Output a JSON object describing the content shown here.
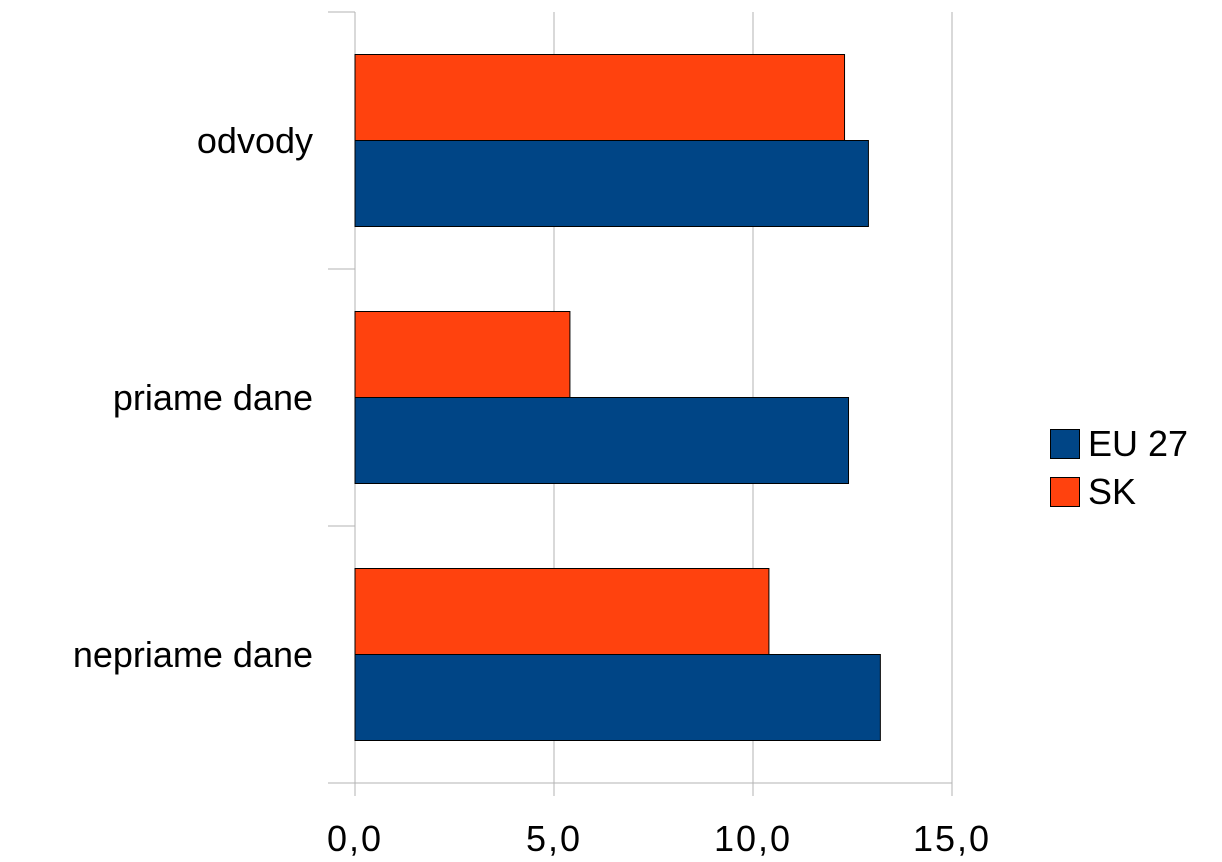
{
  "chart_data": {
    "type": "bar",
    "orientation": "horizontal",
    "categories": [
      "odvody",
      "priame dane",
      "nepriame dane"
    ],
    "series": [
      {
        "name": "EU 27",
        "color": "#004586",
        "values": [
          12.9,
          12.4,
          13.2
        ]
      },
      {
        "name": "SK",
        "color": "#ff420e",
        "values": [
          12.3,
          5.4,
          10.4
        ]
      }
    ],
    "xlim": [
      0,
      15
    ],
    "x_ticks": [
      "0,0",
      "5,0",
      "10,0",
      "15,0"
    ],
    "grid": true,
    "legend_position": "right"
  }
}
